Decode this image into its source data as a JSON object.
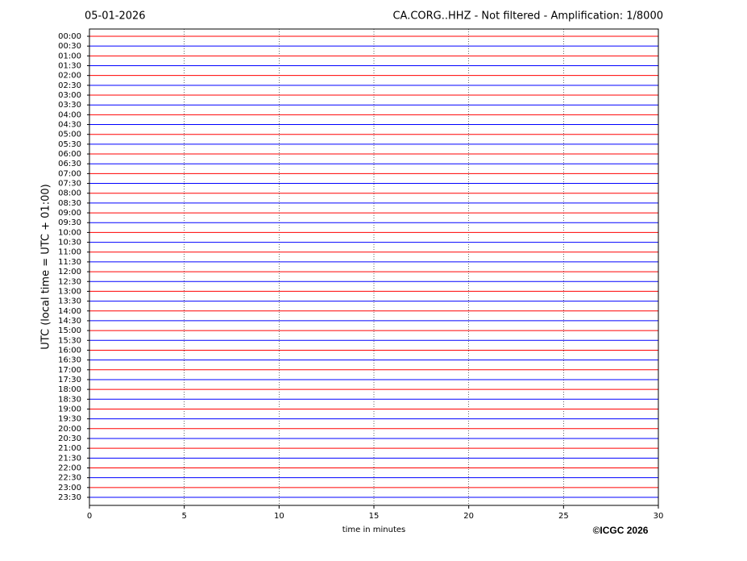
{
  "chart_data": {
    "type": "helicorder",
    "title_left": "05-01-2026",
    "title_right": "CA.CORG..HHZ - Not filtered - Amplification: 1/8000",
    "y_label": "UTC (local time = UTC + 01:00)",
    "x_label": "time in minutes",
    "credit": "©ICGC 2026",
    "categories": [
      "00:00",
      "00:30",
      "01:00",
      "01:30",
      "02:00",
      "02:30",
      "03:00",
      "03:30",
      "04:00",
      "04:30",
      "05:00",
      "05:30",
      "06:00",
      "06:30",
      "07:00",
      "07:30",
      "08:00",
      "08:30",
      "09:00",
      "09:30",
      "10:00",
      "10:30",
      "11:00",
      "11:30",
      "12:00",
      "12:30",
      "13:00",
      "13:30",
      "14:00",
      "14:30",
      "15:00",
      "15:30",
      "16:00",
      "16:30",
      "17:00",
      "17:30",
      "18:00",
      "18:30",
      "19:00",
      "19:30",
      "20:00",
      "20:30",
      "21:00",
      "21:30",
      "22:00",
      "22:30",
      "23:00",
      "23:30"
    ],
    "trace_colors": [
      "#ff0000",
      "#0000ff"
    ],
    "xlim": [
      0,
      30
    ],
    "xticks": [
      0,
      5,
      10,
      15,
      20,
      25,
      30
    ],
    "grid": true
  }
}
